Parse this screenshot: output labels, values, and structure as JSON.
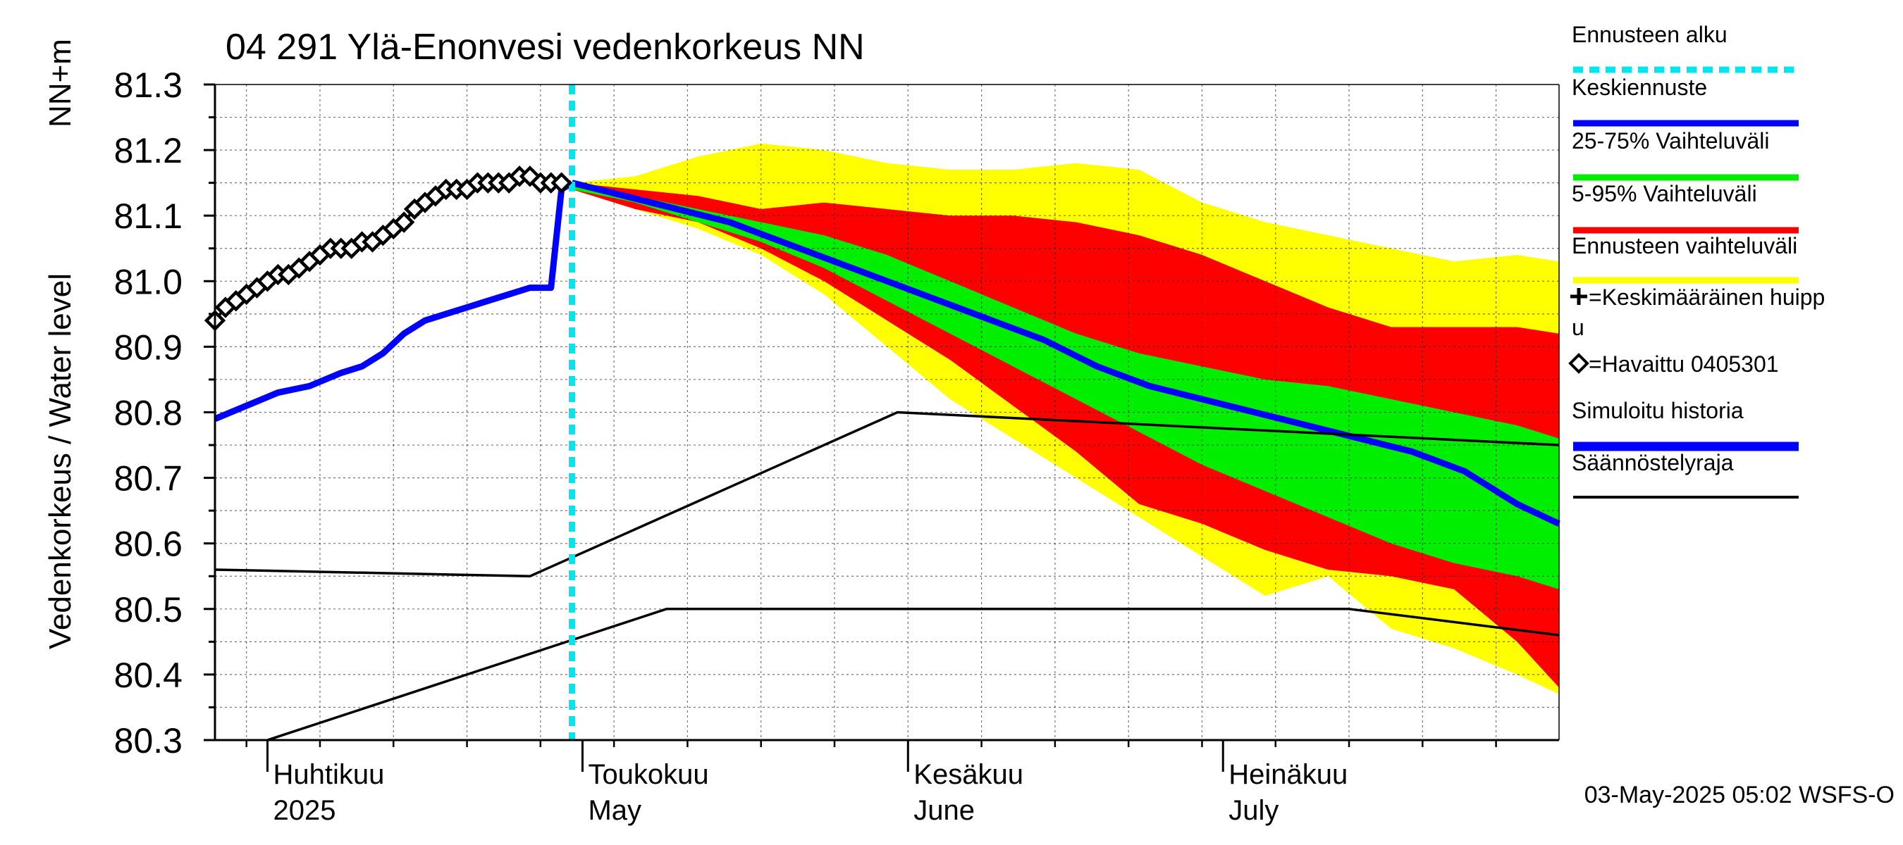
{
  "chart_data": {
    "type": "line",
    "title": "04 291 Ylä-Enonvesi vedenkorkeus NN",
    "ylabel_main": "Vedenkorkeus / Water level",
    "ylabel_unit": "NN+m",
    "ylim": [
      80.3,
      81.3
    ],
    "yticks": [
      "81.3",
      "81.2",
      "81.1",
      "81.0",
      "80.9",
      "80.8",
      "80.7",
      "80.6",
      "80.5",
      "80.4",
      "80.3"
    ],
    "xlim": [
      "2025-03-27",
      "2025-08-02"
    ],
    "month_labels": [
      {
        "line1": "Huhtikuu",
        "line2": "2025",
        "date": "2025-04-01"
      },
      {
        "line1": "Toukokuu",
        "line2": "May",
        "date": "2025-05-01"
      },
      {
        "line1": "Kesäkuu",
        "line2": "June",
        "date": "2025-06-01"
      },
      {
        "line1": "Heinäkuu",
        "line2": "July",
        "date": "2025-07-01"
      }
    ],
    "forecast_start": "2025-04-30",
    "timestamp": "03-May-2025 05:02 WSFS-O",
    "colors": {
      "forecast_start": "#00e5ee",
      "mean_forecast": "#0000ff",
      "range_25_75": "#00ee00",
      "range_5_95": "#ff0000",
      "forecast_range": "#ffff00",
      "simulated": "#0000ff",
      "regulation": "#000000"
    },
    "legend": [
      {
        "label": "Ennusteen alku",
        "style": "dotted",
        "color": "#00e5ee"
      },
      {
        "label": "Keskiennuste",
        "style": "line",
        "color": "#0000ff"
      },
      {
        "label": "25-75% Vaihteluväli",
        "style": "line",
        "color": "#00ee00"
      },
      {
        "label": "5-95% Vaihteluväli",
        "style": "line",
        "color": "#ff0000"
      },
      {
        "label": "Ennusteen vaihteluväli",
        "style": "line",
        "color": "#ffff00"
      },
      {
        "label": "=Keskimääräinen huipp",
        "label2": "u",
        "style": "plus",
        "color": "#000000"
      },
      {
        "label": "=Havaittu 0405301",
        "style": "diamond",
        "color": "#000000"
      },
      {
        "label": "Simuloitu historia",
        "style": "thick",
        "color": "#0000ff"
      },
      {
        "label": "Säännöstelyraja",
        "style": "line",
        "color": "#000000"
      }
    ],
    "series": [
      {
        "name": "Havaittu 0405301",
        "kind": "observed",
        "x": [
          "2025-03-27",
          "2025-03-28",
          "2025-03-29",
          "2025-03-30",
          "2025-03-31",
          "2025-04-01",
          "2025-04-02",
          "2025-04-03",
          "2025-04-04",
          "2025-04-05",
          "2025-04-06",
          "2025-04-07",
          "2025-04-08",
          "2025-04-09",
          "2025-04-10",
          "2025-04-11",
          "2025-04-12",
          "2025-04-13",
          "2025-04-14",
          "2025-04-15",
          "2025-04-16",
          "2025-04-17",
          "2025-04-18",
          "2025-04-19",
          "2025-04-20",
          "2025-04-21",
          "2025-04-22",
          "2025-04-23",
          "2025-04-24",
          "2025-04-25",
          "2025-04-26",
          "2025-04-27",
          "2025-04-28",
          "2025-04-29"
        ],
        "y": [
          80.94,
          80.96,
          80.97,
          80.98,
          80.99,
          81.0,
          81.01,
          81.01,
          81.02,
          81.03,
          81.04,
          81.05,
          81.05,
          81.05,
          81.06,
          81.06,
          81.07,
          81.08,
          81.09,
          81.11,
          81.12,
          81.13,
          81.14,
          81.14,
          81.14,
          81.15,
          81.15,
          81.15,
          81.15,
          81.16,
          81.16,
          81.15,
          81.15,
          81.15
        ]
      },
      {
        "name": "Simuloitu historia",
        "kind": "simulated",
        "x": [
          "2025-03-27",
          "2025-03-30",
          "2025-04-02",
          "2025-04-05",
          "2025-04-08",
          "2025-04-10",
          "2025-04-12",
          "2025-04-14",
          "2025-04-16",
          "2025-04-18",
          "2025-04-20",
          "2025-04-22",
          "2025-04-24",
          "2025-04-26",
          "2025-04-28",
          "2025-04-29",
          "2025-04-30"
        ],
        "y": [
          80.79,
          80.81,
          80.83,
          80.84,
          80.86,
          80.87,
          80.89,
          80.92,
          80.94,
          80.95,
          80.96,
          80.97,
          80.98,
          80.99,
          80.99,
          81.14,
          81.15
        ]
      },
      {
        "name": "Keskiennuste",
        "kind": "mean",
        "x": [
          "2025-04-30",
          "2025-05-05",
          "2025-05-10",
          "2025-05-15",
          "2025-05-20",
          "2025-05-25",
          "2025-05-30",
          "2025-06-04",
          "2025-06-09",
          "2025-06-14",
          "2025-06-19",
          "2025-06-24",
          "2025-06-29",
          "2025-07-04",
          "2025-07-09",
          "2025-07-14",
          "2025-07-19",
          "2025-07-24",
          "2025-07-29",
          "2025-08-02"
        ],
        "y": [
          81.15,
          81.13,
          81.11,
          81.09,
          81.06,
          81.03,
          81.0,
          80.97,
          80.94,
          80.91,
          80.87,
          80.84,
          80.82,
          80.8,
          80.78,
          80.76,
          80.74,
          80.71,
          80.66,
          80.63
        ]
      },
      {
        "name": "Säännöstelyraja ylä",
        "kind": "regulation",
        "x": [
          "2025-03-27",
          "2025-04-26",
          "2025-05-31",
          "2025-08-02"
        ],
        "y": [
          80.56,
          80.55,
          80.8,
          80.75
        ]
      },
      {
        "name": "Säännöstelyraja ala",
        "kind": "regulation",
        "x": [
          "2025-04-01",
          "2025-05-09",
          "2025-07-13",
          "2025-08-02"
        ],
        "y": [
          80.3,
          80.5,
          80.5,
          80.46
        ]
      }
    ],
    "bands": [
      {
        "name": "Ennusteen vaihteluväli",
        "color": "#ffff00",
        "x": [
          "2025-04-30",
          "2025-05-06",
          "2025-05-12",
          "2025-05-18",
          "2025-05-24",
          "2025-05-30",
          "2025-06-05",
          "2025-06-11",
          "2025-06-17",
          "2025-06-23",
          "2025-06-29",
          "2025-07-05",
          "2025-07-11",
          "2025-07-17",
          "2025-07-23",
          "2025-07-29",
          "2025-08-02"
        ],
        "upper": [
          81.15,
          81.16,
          81.19,
          81.21,
          81.2,
          81.18,
          81.17,
          81.17,
          81.18,
          81.17,
          81.12,
          81.09,
          81.07,
          81.05,
          81.03,
          81.04,
          81.03
        ],
        "lower": [
          81.14,
          81.11,
          81.08,
          81.04,
          80.98,
          80.9,
          80.82,
          80.76,
          80.7,
          80.64,
          80.58,
          80.52,
          80.55,
          80.47,
          80.44,
          80.4,
          80.37
        ]
      },
      {
        "name": "5-95% Vaihteluväli",
        "color": "#ff0000",
        "x": [
          "2025-04-30",
          "2025-05-06",
          "2025-05-12",
          "2025-05-18",
          "2025-05-24",
          "2025-05-30",
          "2025-06-05",
          "2025-06-11",
          "2025-06-17",
          "2025-06-23",
          "2025-06-29",
          "2025-07-05",
          "2025-07-11",
          "2025-07-17",
          "2025-07-23",
          "2025-07-29",
          "2025-08-02"
        ],
        "upper": [
          81.15,
          81.14,
          81.13,
          81.11,
          81.12,
          81.11,
          81.1,
          81.1,
          81.09,
          81.07,
          81.04,
          81.0,
          80.96,
          80.93,
          80.93,
          80.93,
          80.92
        ],
        "lower": [
          81.14,
          81.11,
          81.09,
          81.05,
          81.0,
          80.94,
          80.88,
          80.81,
          80.74,
          80.66,
          80.63,
          80.59,
          80.56,
          80.55,
          80.53,
          80.45,
          80.38
        ]
      },
      {
        "name": "25-75% Vaihteluväli",
        "color": "#00ee00",
        "x": [
          "2025-04-30",
          "2025-05-06",
          "2025-05-12",
          "2025-05-18",
          "2025-05-24",
          "2025-05-30",
          "2025-06-05",
          "2025-06-11",
          "2025-06-17",
          "2025-06-23",
          "2025-06-29",
          "2025-07-05",
          "2025-07-11",
          "2025-07-17",
          "2025-07-23",
          "2025-07-29",
          "2025-08-02"
        ],
        "upper": [
          81.15,
          81.13,
          81.11,
          81.09,
          81.07,
          81.04,
          81.0,
          80.96,
          80.92,
          80.89,
          80.87,
          80.85,
          80.84,
          80.82,
          80.8,
          80.78,
          80.76
        ],
        "lower": [
          81.14,
          81.12,
          81.09,
          81.06,
          81.02,
          80.97,
          80.92,
          80.87,
          80.82,
          80.77,
          80.72,
          80.68,
          80.64,
          80.6,
          80.57,
          80.55,
          80.53
        ]
      }
    ]
  }
}
